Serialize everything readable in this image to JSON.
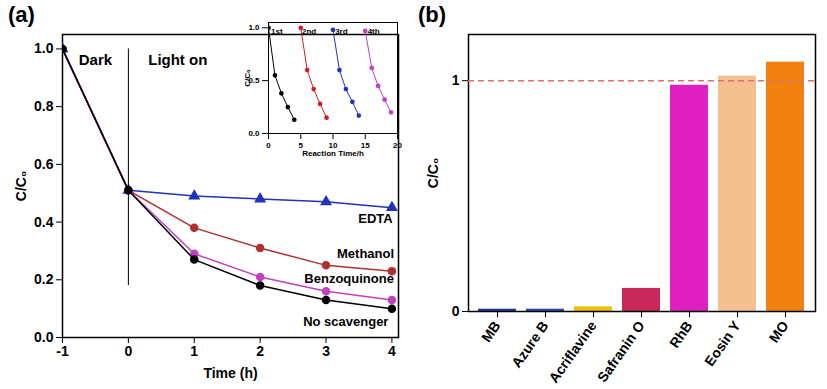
{
  "chart_data": [
    {
      "type": "line",
      "title": "(a)",
      "x_label": "Time (h)",
      "y_label": "C/C₀",
      "x": [
        -1,
        0,
        1,
        2,
        3,
        4
      ],
      "series": [
        {
          "name": "EDTA",
          "color": "#2233bb",
          "marker": "triangle",
          "values": [
            1.0,
            0.51,
            0.49,
            0.48,
            0.47,
            0.45
          ],
          "label_position": {
            "x": 3.75,
            "y": 0.41
          }
        },
        {
          "name": "Methanol",
          "color": "#b03030",
          "marker": "circle",
          "values": [
            1.0,
            0.51,
            0.38,
            0.31,
            0.25,
            0.23
          ],
          "label_position": {
            "x": 3.6,
            "y": 0.29
          }
        },
        {
          "name": "Benzoquinone",
          "color": "#c040c0",
          "marker": "circle",
          "values": [
            1.0,
            0.51,
            0.29,
            0.21,
            0.16,
            0.13
          ],
          "label_position": {
            "x": 3.35,
            "y": 0.205
          }
        },
        {
          "name": "No scavenger",
          "color": "#000000",
          "marker": "circle",
          "values": [
            1.0,
            0.51,
            0.27,
            0.18,
            0.13,
            0.1
          ],
          "label_position": {
            "x": 3.3,
            "y": 0.055
          }
        }
      ],
      "xlim": [
        -1,
        4.1
      ],
      "xticks": [
        -1,
        0,
        1,
        2,
        3,
        4
      ],
      "ylim": [
        0,
        1.05
      ],
      "yticks": [
        {
          "value": 0,
          "label": "0.0"
        },
        {
          "value": 0.2,
          "label": "0.2"
        },
        {
          "value": 0.4,
          "label": "0.4"
        },
        {
          "value": 0.6,
          "label": "0.6"
        },
        {
          "value": 0.8,
          "label": "0.8"
        },
        {
          "value": 1,
          "label": "1.0"
        }
      ],
      "annotations": [
        {
          "text": "Dark",
          "x": -0.5,
          "y": 0.96
        },
        {
          "text": "Light on",
          "x": 0.75,
          "y": 0.96
        }
      ],
      "divider": {
        "x": 0,
        "y1": 0.18,
        "y2": 1.0
      }
    },
    {
      "type": "line",
      "x_label": "Reaction Time/h",
      "y_label": "C/C₀",
      "series": [
        {
          "name": "1st",
          "color": "#000000",
          "marker": "circle",
          "x": [
            0,
            1,
            2,
            3,
            4
          ],
          "values": [
            1.0,
            0.55,
            0.38,
            0.25,
            0.13
          ],
          "label_position": {
            "x": 1.3,
            "y": 0.97
          }
        },
        {
          "name": "2nd",
          "color": "#cc2222",
          "marker": "circle",
          "x": [
            5,
            6,
            7,
            8,
            9
          ],
          "values": [
            1.0,
            0.6,
            0.42,
            0.28,
            0.15
          ],
          "label_position": {
            "x": 6.3,
            "y": 0.97
          }
        },
        {
          "name": "3rd",
          "color": "#2233bb",
          "marker": "circle",
          "x": [
            10,
            11,
            12,
            13,
            14
          ],
          "values": [
            0.98,
            0.6,
            0.42,
            0.3,
            0.17
          ],
          "label_position": {
            "x": 11.3,
            "y": 0.97
          }
        },
        {
          "name": "4th",
          "color": "#c040c0",
          "marker": "circle",
          "x": [
            15,
            16,
            17,
            18,
            19
          ],
          "values": [
            0.97,
            0.62,
            0.45,
            0.32,
            0.2
          ],
          "label_position": {
            "x": 16.3,
            "y": 0.97
          }
        }
      ],
      "xlim": [
        0,
        20
      ],
      "xticks": [
        0,
        5,
        10,
        15,
        20
      ],
      "ylim": [
        0,
        1.05
      ],
      "yticks": [
        {
          "value": 0,
          "label": "0.0"
        },
        {
          "value": 0.5,
          "label": "0.5"
        },
        {
          "value": 1,
          "label": "1.0"
        }
      ]
    },
    {
      "type": "bar",
      "title": "(b)",
      "y_label": "C/C₀",
      "categories": [
        "MB",
        "Azure B",
        "Acriflavine",
        "Safranin O",
        "RhB",
        "Eosin Y",
        "MO"
      ],
      "values": [
        0.01,
        0.01,
        0.02,
        0.1,
        0.98,
        1.02,
        1.08
      ],
      "colors": [
        "#1e3a8c",
        "#2a4fa8",
        "#f0c000",
        "#c8285a",
        "#e020c0",
        "#f5c090",
        "#f08010"
      ],
      "ylim": [
        0,
        1.2
      ],
      "yticks": [
        0,
        1
      ],
      "reference_line": 1
    }
  ]
}
